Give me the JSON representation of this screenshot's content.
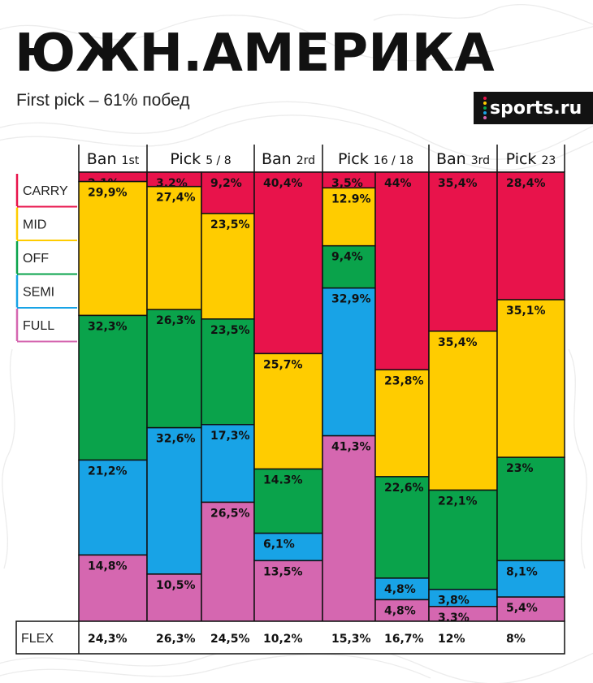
{
  "header": {
    "title": "ЮЖН.АМЕРИКА",
    "subtitle": "First pick – 61% побед",
    "logo_text": "sports.ru"
  },
  "colors": {
    "carry": "#E8134B",
    "mid": "#FFCC00",
    "off": "#0AA34B",
    "semi": "#18A3E6",
    "full": "#D567B0",
    "logo_dots": [
      "#E8134B",
      "#FFCC00",
      "#0AA34B",
      "#18A3E6",
      "#D567B0"
    ]
  },
  "chart_data": {
    "type": "bar",
    "stacked": true,
    "percent_scale": true,
    "columns": [
      {
        "main": "Ban",
        "sub": "1st"
      },
      {
        "main": "Pick",
        "sub": "5 / 8"
      },
      {
        "main": "Ban",
        "sub": "2rd"
      },
      {
        "main": "Pick",
        "sub": "16 / 18"
      },
      {
        "main": "Ban",
        "sub": "3rd"
      },
      {
        "main": "Pick",
        "sub": "23"
      }
    ],
    "legend": [
      "CARRY",
      "MID",
      "OFF",
      "SEMI",
      "FULL"
    ],
    "bars": [
      {
        "values": [
          2.1,
          29.9,
          32.3,
          21.2,
          14.8
        ],
        "labels": [
          "2,1%",
          "29,9%",
          "32,3%",
          "21,2%",
          "14,8%"
        ],
        "flex": "24,3%"
      },
      {
        "values": [
          3.2,
          27.4,
          26.3,
          32.6,
          10.5
        ],
        "labels": [
          "3,2%",
          "27,4%",
          "26,3%",
          "32,6%",
          "10,5%"
        ],
        "flex": "26,3%"
      },
      {
        "values": [
          9.2,
          23.5,
          23.5,
          17.3,
          26.5
        ],
        "labels": [
          "9,2%",
          "23,5%",
          "23,5%",
          "17,3%",
          "26,5%"
        ],
        "flex": "24,5%"
      },
      {
        "values": [
          40.4,
          25.7,
          14.3,
          6.1,
          13.5
        ],
        "labels": [
          "40,4%",
          "25,7%",
          "14.3%",
          "6,1%",
          "13,5%"
        ],
        "flex": "10,2%"
      },
      {
        "values": [
          3.5,
          12.9,
          9.4,
          32.9,
          41.3
        ],
        "labels": [
          "3,5%",
          "12.9%",
          "9,4%",
          "32,9%",
          "41,3%"
        ],
        "flex": "15,3%"
      },
      {
        "values": [
          44,
          23.8,
          22.6,
          4.8,
          4.8
        ],
        "labels": [
          "44%",
          "23,8%",
          "22,6%",
          "4,8%",
          "4,8%"
        ],
        "flex": "16,7%"
      },
      {
        "values": [
          35.4,
          35.4,
          22.1,
          3.8,
          3.3
        ],
        "labels": [
          "35,4%",
          "35,4%",
          "22,1%",
          "3,8%",
          "3,3%"
        ],
        "flex": "12%"
      },
      {
        "values": [
          28.4,
          35.1,
          23,
          8.1,
          5.4
        ],
        "labels": [
          "28,4%",
          "35,1%",
          "23%",
          "8,1%",
          "5,4%"
        ],
        "flex": "8%"
      }
    ],
    "flex_label": "FLEX"
  }
}
